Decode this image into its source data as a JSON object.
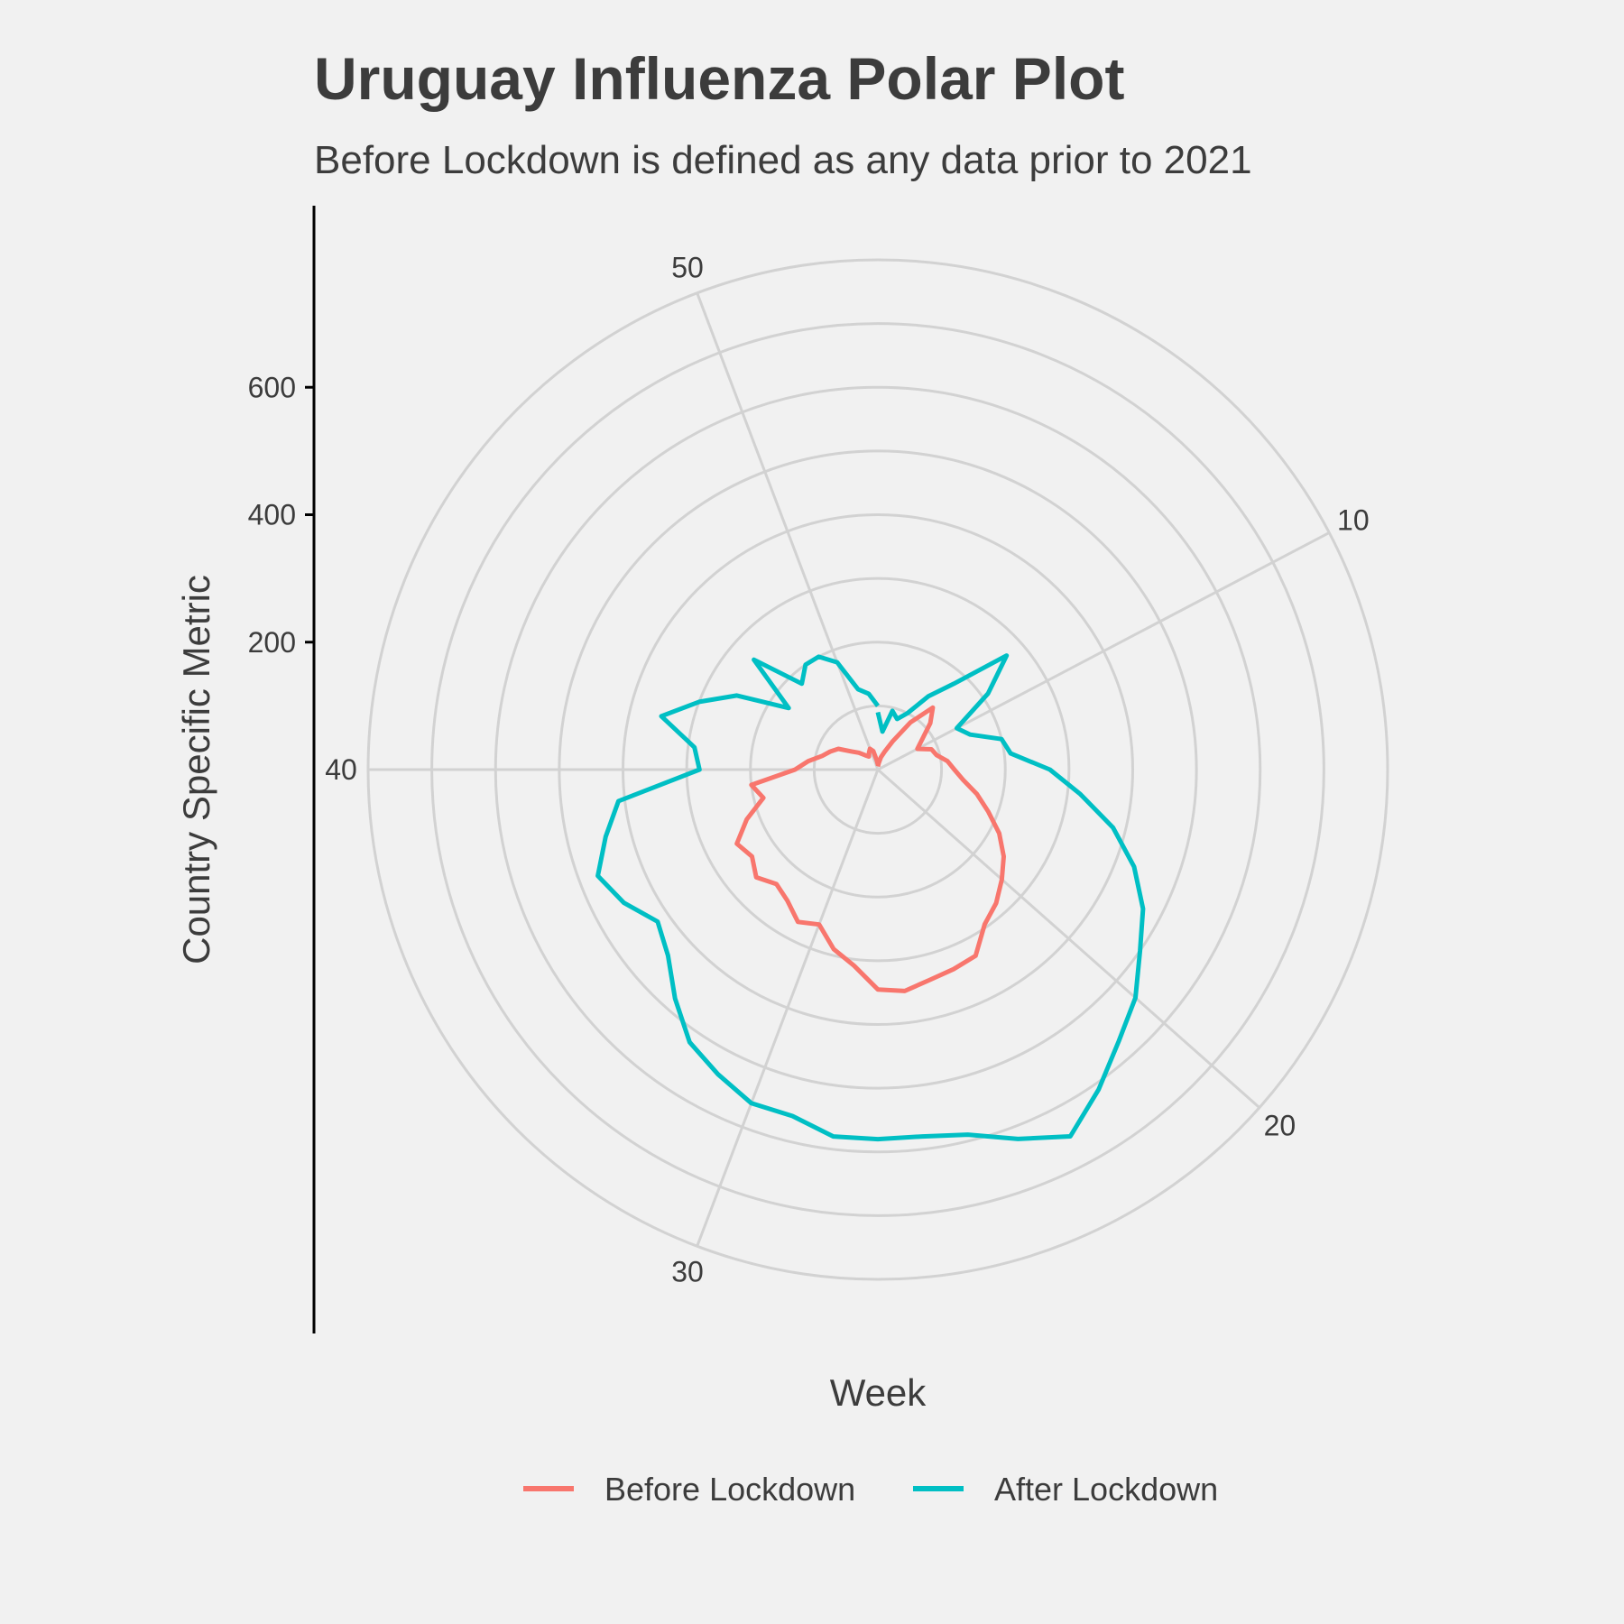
{
  "chart_data": {
    "type": "line",
    "coord": "polar",
    "title": "Uruguay Influenza Polar Plot",
    "subtitle": "Before Lockdown is defined as any data prior to 2021",
    "xlabel": "Week",
    "ylabel": "Country Specific Metric",
    "xlim": [
      1,
      53
    ],
    "ylim": [
      0,
      800
    ],
    "theta_ticks": [
      10,
      20,
      30,
      40,
      50
    ],
    "r_ticks": [
      200,
      400,
      600
    ],
    "grid": true,
    "legend_position": "bottom",
    "series": [
      {
        "name": "Before Lockdown",
        "color": "#f8766d",
        "weeks": [
          1,
          2,
          3,
          4,
          5,
          6,
          7,
          8,
          9,
          10,
          11,
          12,
          13,
          14,
          15,
          16,
          17,
          18,
          19,
          20,
          21,
          22,
          23,
          24,
          25,
          26,
          27,
          28,
          29,
          30,
          31,
          32,
          33,
          34,
          35,
          36,
          37,
          38,
          39,
          40,
          41,
          42,
          43,
          44,
          45,
          46,
          47,
          48,
          49,
          50,
          51,
          52,
          53
        ],
        "values": [
          5,
          10,
          20,
          30,
          50,
          90,
          130,
          110,
          85,
          70,
          90,
          95,
          110,
          120,
          135,
          160,
          185,
          215,
          240,
          260,
          280,
          295,
          330,
          335,
          340,
          350,
          345,
          310,
          290,
          260,
          270,
          250,
          240,
          255,
          240,
          250,
          220,
          185,
          200,
          130,
          110,
          90,
          80,
          70,
          50,
          40,
          30,
          25,
          30,
          35,
          30,
          15,
          8
        ]
      },
      {
        "name": "After Lockdown",
        "color": "#00bfc4",
        "weeks": [
          1,
          2,
          3,
          4,
          5,
          6,
          7,
          8,
          9,
          10,
          11,
          12,
          13,
          14,
          15,
          16,
          17,
          18,
          19,
          20,
          21,
          22,
          23,
          24,
          25,
          26,
          27,
          28,
          29,
          30,
          31,
          32,
          33,
          34,
          35,
          36,
          37,
          38,
          39,
          40,
          41,
          42,
          43,
          44,
          45,
          46,
          47,
          48,
          49,
          50,
          51,
          52,
          53
        ],
        "values": [
          90,
          60,
          95,
          85,
          100,
          140,
          180,
          270,
          210,
          140,
          155,
          200,
          210,
          270,
          320,
          380,
          430,
          470,
          500,
          540,
          570,
          610,
          650,
          620,
          590,
          580,
          580,
          580,
          560,
          560,
          540,
          520,
          480,
          440,
          420,
          450,
          470,
          440,
          410,
          280,
          290,
          350,
          300,
          250,
          170,
          260,
          180,
          200,
          200,
          180,
          130,
          120,
          100
        ]
      }
    ]
  }
}
